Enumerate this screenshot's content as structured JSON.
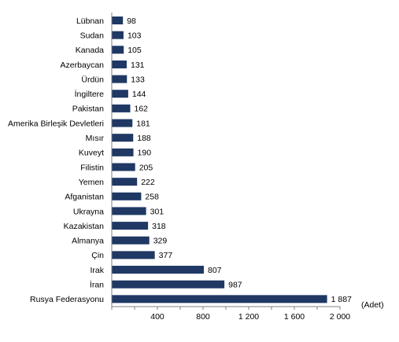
{
  "chart_data": {
    "type": "bar",
    "orientation": "horizontal",
    "categories": [
      "Lübnan",
      "Sudan",
      "Kanada",
      "Azerbaycan",
      "Ürdün",
      "İngiltere",
      "Pakistan",
      "Amerika Birleşik Devletleri",
      "Mısır",
      "Kuveyt",
      "Filistin",
      "Yemen",
      "Afganistan",
      "Ukrayna",
      "Kazakistan",
      "Almanya",
      "Çin",
      "Irak",
      "İran",
      "Rusya Federasyonu"
    ],
    "values": [
      98,
      103,
      105,
      131,
      133,
      144,
      162,
      181,
      188,
      190,
      205,
      222,
      258,
      301,
      318,
      329,
      377,
      807,
      987,
      1887
    ],
    "value_labels": [
      "98",
      "103",
      "105",
      "131",
      "133",
      "144",
      "162",
      "181",
      "188",
      "190",
      "205",
      "222",
      "258",
      "301",
      "318",
      "329",
      "377",
      "807",
      "987",
      "1 887"
    ],
    "xlim": [
      0,
      2000
    ],
    "xticks": [
      400,
      800,
      1200,
      1600,
      2000
    ],
    "xtick_labels": [
      "400",
      "800",
      "1 200",
      "1 600",
      "2 000"
    ],
    "unit_label": "(Adet)",
    "bar_color": "#1f3864",
    "grid": false,
    "legend": "none"
  }
}
